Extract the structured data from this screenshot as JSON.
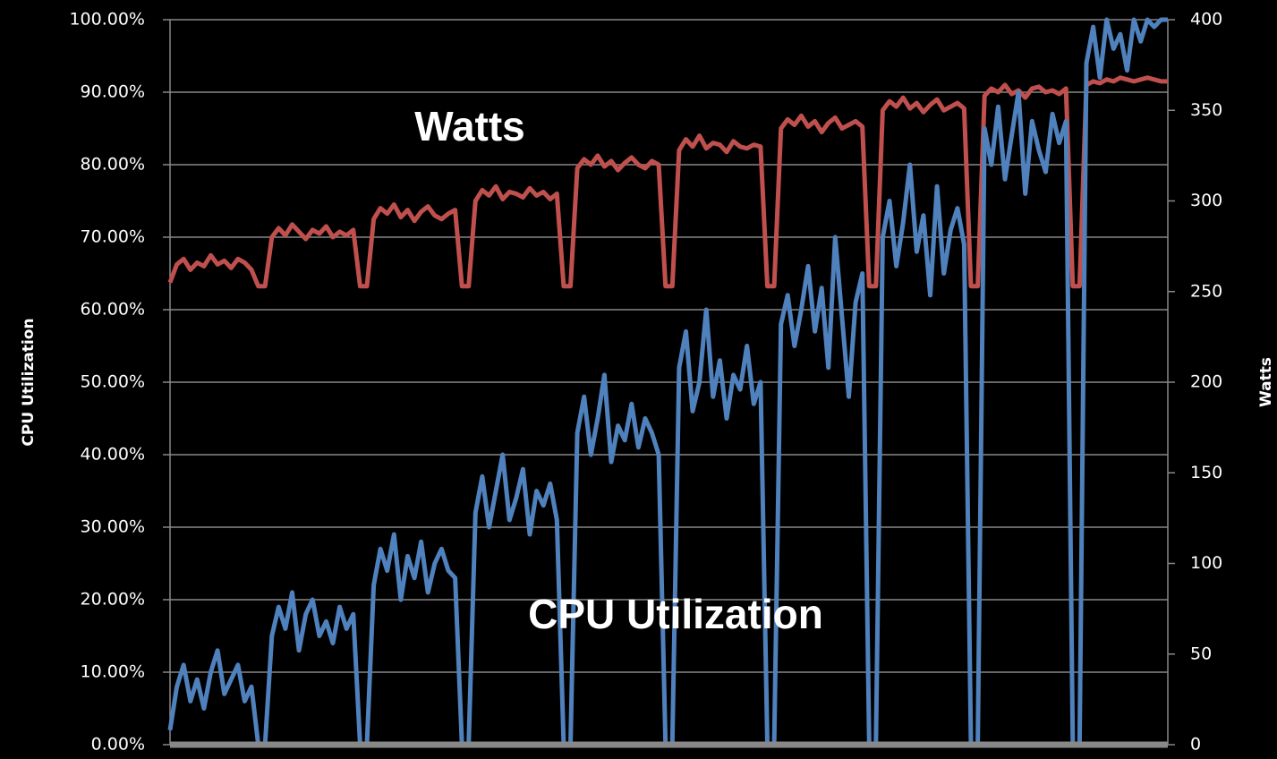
{
  "chart_data": {
    "type": "line",
    "ylabel": "CPU Utilization",
    "y2label": "Watts",
    "annotations": [
      "Watts",
      "CPU Utilization"
    ],
    "ylim": [
      0,
      100
    ],
    "yticks": [
      {
        "value": 0,
        "label": "0.00%"
      },
      {
        "value": 10,
        "label": "10.00%"
      },
      {
        "value": 20,
        "label": "20.00%"
      },
      {
        "value": 30,
        "label": "30.00%"
      },
      {
        "value": 40,
        "label": "40.00%"
      },
      {
        "value": 50,
        "label": "50.00%"
      },
      {
        "value": 60,
        "label": "60.00%"
      },
      {
        "value": 70,
        "label": "70.00%"
      },
      {
        "value": 80,
        "label": "80.00%"
      },
      {
        "value": 90,
        "label": "90.00%"
      },
      {
        "value": 100,
        "label": "100.00%"
      }
    ],
    "y2lim": [
      0,
      400
    ],
    "y2ticks": [
      0,
      50,
      100,
      150,
      200,
      250,
      300,
      350,
      400
    ],
    "grid": true,
    "series": [
      {
        "name": "Watts",
        "color": "#c0504d",
        "axis": "y2",
        "values": [
          255,
          265,
          268,
          262,
          266,
          264,
          270,
          265,
          267,
          263,
          268,
          266,
          262,
          253,
          253,
          280,
          285,
          281,
          287,
          283,
          279,
          284,
          282,
          286,
          280,
          283,
          281,
          284,
          253,
          253,
          290,
          296,
          293,
          298,
          291,
          295,
          289,
          294,
          297,
          292,
          290,
          293,
          295,
          253,
          253,
          300,
          306,
          303,
          308,
          301,
          305,
          304,
          302,
          307,
          303,
          305,
          301,
          304,
          253,
          253,
          318,
          323,
          320,
          325,
          319,
          322,
          317,
          321,
          324,
          320,
          318,
          322,
          320,
          253,
          253,
          328,
          334,
          330,
          336,
          329,
          332,
          331,
          327,
          333,
          330,
          329,
          331,
          330,
          253,
          253,
          340,
          345,
          342,
          347,
          341,
          344,
          338,
          343,
          346,
          340,
          342,
          344,
          341,
          253,
          253,
          350,
          355,
          352,
          357,
          351,
          354,
          349,
          353,
          356,
          350,
          352,
          354,
          351,
          253,
          253,
          358,
          362,
          360,
          364,
          359,
          361,
          357,
          362,
          363,
          360,
          361,
          359,
          362,
          253,
          253,
          364,
          366,
          365,
          367,
          366,
          368,
          367,
          366,
          367,
          368,
          367,
          366,
          366
        ]
      },
      {
        "name": "CPU Utilization",
        "color": "#4f81bd",
        "values": [
          2,
          8,
          11,
          6,
          9,
          5,
          10,
          13,
          7,
          9,
          11,
          6,
          8,
          0,
          0,
          15,
          19,
          16,
          21,
          13,
          18,
          20,
          15,
          17,
          14,
          19,
          16,
          18,
          0,
          0,
          22,
          27,
          24,
          29,
          20,
          26,
          23,
          28,
          21,
          25,
          27,
          24,
          23,
          0,
          0,
          32,
          37,
          30,
          35,
          40,
          31,
          34,
          38,
          29,
          35,
          33,
          36,
          31,
          0,
          0,
          43,
          48,
          40,
          45,
          51,
          39,
          44,
          42,
          47,
          41,
          45,
          43,
          40,
          0,
          0,
          52,
          57,
          46,
          50,
          60,
          48,
          53,
          45,
          51,
          49,
          55,
          47,
          50,
          0,
          0,
          58,
          62,
          55,
          60,
          66,
          57,
          63,
          52,
          70,
          59,
          48,
          61,
          65,
          0,
          0,
          70,
          75,
          66,
          72,
          80,
          68,
          73,
          62,
          77,
          65,
          71,
          74,
          69,
          0,
          0,
          85,
          80,
          88,
          78,
          84,
          90,
          76,
          86,
          82,
          79,
          87,
          83,
          86,
          0,
          0,
          94,
          99,
          92,
          100,
          96,
          98,
          93,
          100,
          97,
          100,
          99,
          100,
          100
        ]
      }
    ]
  }
}
